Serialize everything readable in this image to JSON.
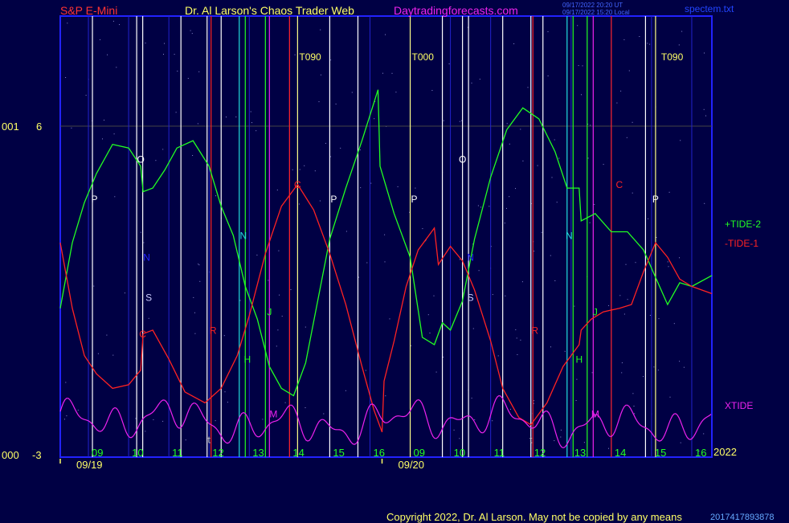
{
  "header": {
    "symbol": "S&P E-Mini",
    "title": "Dr. Al Larson's Chaos Trader Web",
    "site": "Daytradingforecasts.com",
    "timestamp_ut": "09/17/2022 20:20 UT",
    "timestamp_local": "09/17/2022 15:20 Local",
    "file": "spectem.txt"
  },
  "footer": {
    "copyright": "Copyright 2022, Dr. Al Larson. May not be copied by any means",
    "code": "2017417893878"
  },
  "colors": {
    "background": "#000044",
    "frame": "#2222ff",
    "tide2": "#22ff22",
    "tide1": "#ff2222",
    "xtide": "#ee22ee",
    "white_line": "#ffffff",
    "yellow_line": "#ffff88"
  },
  "chart_data": {
    "type": "line",
    "y_axis": {
      "top_label": "6",
      "top_prefix": "001",
      "bottom_label": "-3",
      "bottom_prefix": "000",
      "ylim": [
        -3,
        6
      ]
    },
    "year_label": "2022",
    "hours": [
      {
        "label": "09",
        "t": 4
      },
      {
        "label": "10",
        "t": 5
      },
      {
        "label": "11",
        "t": 6
      },
      {
        "label": "12",
        "t": 7
      },
      {
        "label": "13",
        "t": 8
      },
      {
        "label": "14",
        "t": 9
      },
      {
        "label": "15",
        "t": 10
      },
      {
        "label": "16",
        "t": 11
      },
      {
        "label": "09",
        "t": 12
      },
      {
        "label": "10",
        "t": 13
      },
      {
        "label": "11",
        "t": 14
      },
      {
        "label": "12",
        "t": 15
      },
      {
        "label": "13",
        "t": 16
      },
      {
        "label": "14",
        "t": 17
      },
      {
        "label": "15",
        "t": 18
      },
      {
        "label": "16",
        "t": 19
      }
    ],
    "dates": [
      {
        "label": "09/19",
        "t": 3.2
      },
      {
        "label": "09/20",
        "t": 11.3
      }
    ],
    "xlim": [
      3.3,
      19.5
    ],
    "timing_markers": [
      {
        "label": "T090",
        "t": 9.2
      },
      {
        "label": "T000",
        "t": 12
      },
      {
        "label": "T090",
        "t": 18.2
      }
    ],
    "series": [
      {
        "name": "+TIDE-2",
        "key": "tide2",
        "points": [
          [
            3.3,
            1.0
          ],
          [
            3.6,
            2.8
          ],
          [
            3.9,
            3.9
          ],
          [
            4.2,
            4.7
          ],
          [
            4.6,
            5.5
          ],
          [
            5.0,
            5.4
          ],
          [
            5.3,
            4.9
          ],
          [
            5.36,
            4.2
          ],
          [
            5.6,
            4.3
          ],
          [
            5.9,
            4.8
          ],
          [
            6.2,
            5.4
          ],
          [
            6.6,
            5.6
          ],
          [
            7.0,
            4.9
          ],
          [
            7.3,
            3.8
          ],
          [
            7.6,
            3.0
          ],
          [
            7.9,
            1.6
          ],
          [
            8.2,
            0.7
          ],
          [
            8.5,
            -0.6
          ],
          [
            8.8,
            -1.2
          ],
          [
            9.1,
            -1.4
          ],
          [
            9.4,
            -0.5
          ],
          [
            9.7,
            1.2
          ],
          [
            10.0,
            2.9
          ],
          [
            10.4,
            4.3
          ],
          [
            10.8,
            5.6
          ],
          [
            11.2,
            7.0
          ],
          [
            11.25,
            4.9
          ],
          [
            11.6,
            3.6
          ],
          [
            12.0,
            2.4
          ],
          [
            12.3,
            0.2
          ],
          [
            12.6,
            0.0
          ],
          [
            12.8,
            0.6
          ],
          [
            13.0,
            0.4
          ],
          [
            13.3,
            1.2
          ],
          [
            13.6,
            2.9
          ],
          [
            14.0,
            4.6
          ],
          [
            14.4,
            5.9
          ],
          [
            14.8,
            6.5
          ],
          [
            15.2,
            6.2
          ],
          [
            15.6,
            5.3
          ],
          [
            15.9,
            4.3
          ],
          [
            16.2,
            4.3
          ],
          [
            16.25,
            3.4
          ],
          [
            16.6,
            3.6
          ],
          [
            17.0,
            3.1
          ],
          [
            17.4,
            3.1
          ],
          [
            17.8,
            2.6
          ],
          [
            18.2,
            1.6
          ],
          [
            18.4,
            1.1
          ],
          [
            18.7,
            1.7
          ],
          [
            19.0,
            1.6
          ],
          [
            19.5,
            1.9
          ]
        ]
      },
      {
        "name": "-TIDE-1",
        "key": "tide1",
        "points": [
          [
            3.3,
            2.8
          ],
          [
            3.6,
            1.0
          ],
          [
            3.9,
            -0.3
          ],
          [
            4.2,
            -0.8
          ],
          [
            4.6,
            -1.2
          ],
          [
            5.0,
            -1.1
          ],
          [
            5.3,
            -0.7
          ],
          [
            5.36,
            0.3
          ],
          [
            5.6,
            0.4
          ],
          [
            6.0,
            -0.4
          ],
          [
            6.4,
            -1.3
          ],
          [
            6.9,
            -1.6
          ],
          [
            7.3,
            -1.2
          ],
          [
            7.7,
            -0.3
          ],
          [
            8.0,
            0.8
          ],
          [
            8.4,
            2.5
          ],
          [
            8.8,
            3.8
          ],
          [
            9.2,
            4.4
          ],
          [
            9.6,
            3.7
          ],
          [
            10.0,
            2.5
          ],
          [
            10.4,
            1.1
          ],
          [
            10.8,
            -0.6
          ],
          [
            11.1,
            -1.8
          ],
          [
            11.3,
            -2.4
          ],
          [
            11.35,
            -1.0
          ],
          [
            11.6,
            0.1
          ],
          [
            11.9,
            1.6
          ],
          [
            12.2,
            2.6
          ],
          [
            12.6,
            3.2
          ],
          [
            12.7,
            2.2
          ],
          [
            13.0,
            2.7
          ],
          [
            13.3,
            2.3
          ],
          [
            13.6,
            1.5
          ],
          [
            14.0,
            0.1
          ],
          [
            14.3,
            -1.2
          ],
          [
            14.7,
            -2.0
          ],
          [
            15.0,
            -2.2
          ],
          [
            15.4,
            -1.6
          ],
          [
            15.8,
            -0.6
          ],
          [
            16.2,
            0.0
          ],
          [
            16.25,
            0.4
          ],
          [
            16.5,
            0.7
          ],
          [
            16.8,
            0.9
          ],
          [
            17.2,
            1.0
          ],
          [
            17.5,
            1.1
          ],
          [
            17.8,
            2.0
          ],
          [
            18.1,
            2.8
          ],
          [
            18.4,
            2.4
          ],
          [
            18.7,
            1.8
          ],
          [
            19.0,
            1.6
          ],
          [
            19.5,
            1.4
          ]
        ]
      },
      {
        "name": "XTIDE",
        "key": "xtide",
        "points": []
      }
    ],
    "event_labels": [
      {
        "text": "P",
        "t": 4.15,
        "y": 3.9,
        "color": "#ffffff"
      },
      {
        "text": "O",
        "t": 5.3,
        "y": 5.0,
        "color": "#ffffff"
      },
      {
        "text": "N",
        "t": 5.45,
        "y": 2.3,
        "color": "#2222ff"
      },
      {
        "text": "S",
        "t": 5.5,
        "y": 1.2,
        "color": "#ccccff"
      },
      {
        "text": "C",
        "t": 5.35,
        "y": 0.2,
        "color": "#ff2222"
      },
      {
        "text": "R",
        "t": 7.1,
        "y": 0.3,
        "color": "#ff2222"
      },
      {
        "text": "N",
        "t": 7.85,
        "y": 2.9,
        "color": "#22dddd"
      },
      {
        "text": "H",
        "t": 7.95,
        "y": -0.5,
        "color": "#22ff22"
      },
      {
        "text": "J",
        "t": 8.5,
        "y": 0.8,
        "color": "#22ff22"
      },
      {
        "text": "M",
        "t": 8.6,
        "y": -2.0,
        "color": "#ee22ee"
      },
      {
        "text": "C",
        "t": 9.2,
        "y": 4.3,
        "color": "#ff2222"
      },
      {
        "text": "P",
        "t": 10.1,
        "y": 3.9,
        "color": "#ffffff"
      },
      {
        "text": "P",
        "t": 12.1,
        "y": 3.9,
        "color": "#ffffff"
      },
      {
        "text": "O",
        "t": 13.3,
        "y": 5.0,
        "color": "#ffffff"
      },
      {
        "text": "N",
        "t": 13.5,
        "y": 2.3,
        "color": "#2222ff"
      },
      {
        "text": "S",
        "t": 13.5,
        "y": 1.2,
        "color": "#ccccff"
      },
      {
        "text": "R",
        "t": 15.1,
        "y": 0.3,
        "color": "#ff2222"
      },
      {
        "text": "N",
        "t": 15.95,
        "y": 2.9,
        "color": "#22dddd"
      },
      {
        "text": "H",
        "t": 16.2,
        "y": -0.5,
        "color": "#22ff22"
      },
      {
        "text": "J",
        "t": 16.6,
        "y": 0.8,
        "color": "#22ff22"
      },
      {
        "text": "M",
        "t": 16.6,
        "y": -2.0,
        "color": "#ee22ee"
      },
      {
        "text": "C",
        "t": 17.2,
        "y": 4.3,
        "color": "#ff2222"
      },
      {
        "text": "P",
        "t": 18.1,
        "y": 3.9,
        "color": "#ffffff"
      },
      {
        "text": "t",
        "t": 7.0,
        "y": -2.7,
        "color": "#cccccc"
      },
      {
        "text": "t",
        "t": 15.0,
        "y": -2.7,
        "color": "#cccccc"
      }
    ],
    "vertical_lines": [
      {
        "t": 4.1,
        "color": "#ffffff"
      },
      {
        "t": 5.2,
        "color": "#ffffff"
      },
      {
        "t": 5.35,
        "color": "#ffffff"
      },
      {
        "t": 6.3,
        "color": "#ffffff"
      },
      {
        "t": 6.95,
        "color": "#ffffff"
      },
      {
        "t": 7.05,
        "color": "#ff2222"
      },
      {
        "t": 7.3,
        "color": "#ffffff"
      },
      {
        "t": 7.75,
        "color": "#22dddd"
      },
      {
        "t": 7.9,
        "color": "#22ff22"
      },
      {
        "t": 8.4,
        "color": "#22ff22"
      },
      {
        "t": 8.5,
        "color": "#ee22ee"
      },
      {
        "t": 9.0,
        "color": "#ff2222"
      },
      {
        "t": 9.2,
        "color": "#ffff88"
      },
      {
        "t": 10.0,
        "color": "#ffffff"
      },
      {
        "t": 10.7,
        "color": "#ffffff"
      },
      {
        "t": 12.0,
        "color": "#ffff88"
      },
      {
        "t": 12.8,
        "color": "#ffffff"
      },
      {
        "t": 13.3,
        "color": "#ffffff"
      },
      {
        "t": 13.45,
        "color": "#ffffff"
      },
      {
        "t": 14.3,
        "color": "#ffffff"
      },
      {
        "t": 15.0,
        "color": "#ffffff"
      },
      {
        "t": 15.05,
        "color": "#ff2222"
      },
      {
        "t": 15.3,
        "color": "#ffffff"
      },
      {
        "t": 15.9,
        "color": "#22dddd"
      },
      {
        "t": 16.05,
        "color": "#22ff22"
      },
      {
        "t": 16.4,
        "color": "#22ff22"
      },
      {
        "t": 16.55,
        "color": "#ee22ee"
      },
      {
        "t": 17.0,
        "color": "#ff2222"
      },
      {
        "t": 17.85,
        "color": "#ffffff"
      },
      {
        "t": 18.1,
        "color": "#ffff88"
      }
    ]
  }
}
